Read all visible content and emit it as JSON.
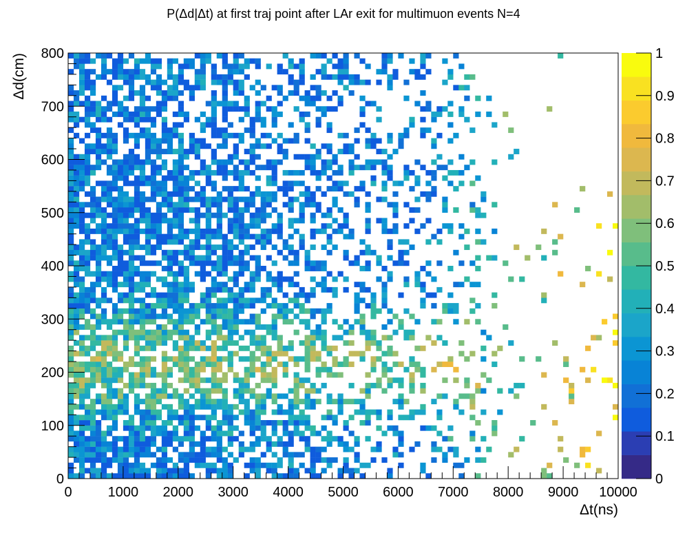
{
  "chart_data": {
    "type": "heatmap",
    "title": "P(Δd|Δt) at first traj point after LAr exit for multimuon events N=4",
    "xlabel": "Δt(ns)",
    "ylabel": "Δd(cm)",
    "xlim": [
      0,
      10000
    ],
    "ylim": [
      0,
      800
    ],
    "zlim": [
      0,
      1
    ],
    "bins": {
      "nx": 100,
      "ny": 80
    },
    "x_ticks": [
      "0",
      "1000",
      "2000",
      "3000",
      "4000",
      "5000",
      "6000",
      "7000",
      "8000",
      "9000",
      "10000"
    ],
    "y_ticks": [
      "0",
      "100",
      "200",
      "300",
      "400",
      "500",
      "600",
      "700",
      "800"
    ],
    "z_ticks": [
      "0",
      "0.1",
      "0.2",
      "0.3",
      "0.4",
      "0.5",
      "0.6",
      "0.7",
      "0.8",
      "0.9",
      "1"
    ],
    "palette": [
      "#352a87",
      "#2b3eb3",
      "#0f5cdd",
      "#1170d6",
      "#0883d6",
      "#0b95d3",
      "#1ba5c9",
      "#22b0b8",
      "#33b8a1",
      "#58bc8b",
      "#7fbf7b",
      "#a2bd6a",
      "#c2b95c",
      "#dcb74f",
      "#f0b93d",
      "#fbcb2e",
      "#f9e121",
      "#f9fb0e"
    ],
    "axes_color": "#000000",
    "background": "#ffffff",
    "density": "probability highest for Δt below ~5000 ns and Δd between ~100 and ~400 cm; sparse yellow bins near Δt 8500-9500 ns"
  }
}
